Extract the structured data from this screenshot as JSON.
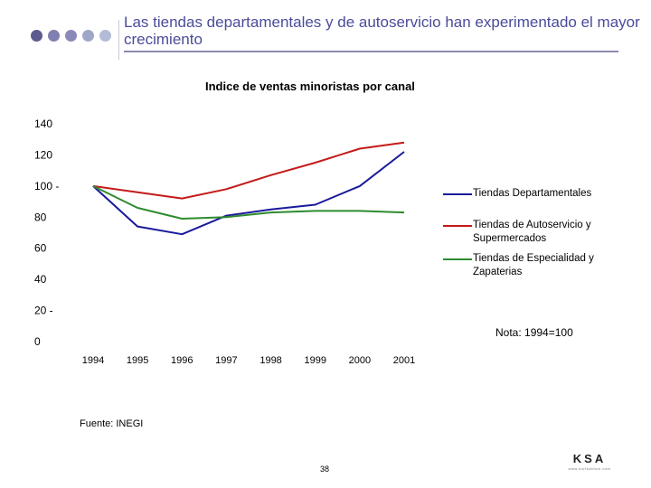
{
  "header": {
    "title": "Las tiendas departamentales y de autoservicio han experimentado el mayor crecimiento",
    "dot_colors": [
      "#5b5b8f",
      "#7f7fb0",
      "#8a8ab8",
      "#9fa7c8",
      "#b3bcd6"
    ]
  },
  "chart_data": {
    "type": "line",
    "title": "Indice de ventas minoristas por canal",
    "categories": [
      "1994",
      "1995",
      "1996",
      "1997",
      "1998",
      "1999",
      "2000",
      "2001"
    ],
    "ylim": [
      0,
      140
    ],
    "yticks": [
      "0",
      "20 -",
      "40",
      "60",
      "80",
      "100 -",
      "120",
      "140"
    ],
    "series": [
      {
        "name": "Tiendas Departamentales",
        "color": "#1a1a9c",
        "values": [
          100,
          74,
          69,
          81,
          85,
          88,
          100,
          122
        ]
      },
      {
        "name": "Tiendas de Autoservicio y Supermercados",
        "color": "#c41a1a",
        "values": [
          100,
          96,
          92,
          98,
          107,
          115,
          124,
          128
        ]
      },
      {
        "name": "Tiendas de Especialidad y Zapaterias",
        "color": "#2e8b2e",
        "values": [
          100,
          86,
          79,
          80,
          83,
          84,
          84,
          83
        ]
      }
    ],
    "note": "Nota: 1994=100"
  },
  "footer": {
    "source": "Fuente: INEGI",
    "page_number": "38",
    "logo": "KSA",
    "logo_sub": "www.kurtsalmon.com"
  }
}
